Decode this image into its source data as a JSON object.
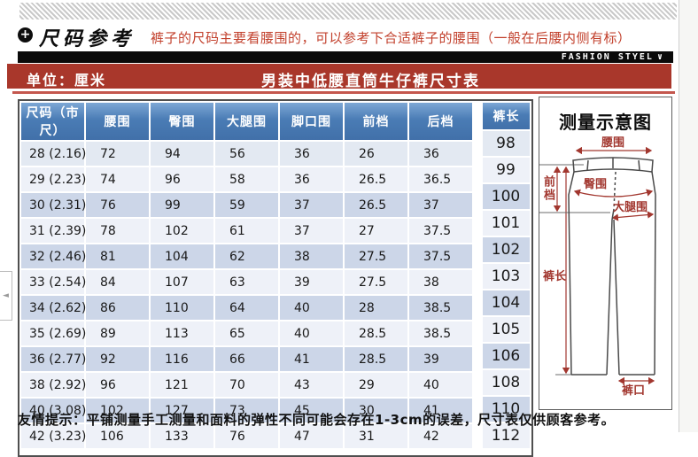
{
  "header": {
    "section_title": "尺码参考",
    "plus_glyph": "+",
    "note": "裤子的尺码主要看腰围的，可以参考下合适裤子的腰围（一般在后腰内侧有标）",
    "brand_tag": "FASHION STYEL",
    "brand_chevron": "∨",
    "unit_label": "单位：厘米",
    "table_title": "男装中低腰直筒牛仔裤尺寸表"
  },
  "table": {
    "columns": [
      "尺码（市尺）",
      "腰围",
      "臀围",
      "大腿围",
      "脚口围",
      "前档",
      "后档",
      "裤长"
    ],
    "rows": [
      [
        "28 (2.16)",
        "72",
        "94",
        "56",
        "36",
        "26",
        "36",
        "98"
      ],
      [
        "29 (2.23)",
        "74",
        "96",
        "58",
        "36",
        "26.5",
        "36.5",
        "99"
      ],
      [
        "30 (2.31)",
        "76",
        "99",
        "59",
        "37",
        "26.5",
        "37",
        "100"
      ],
      [
        "31 (2.39)",
        "78",
        "102",
        "61",
        "37",
        "27",
        "37.5",
        "101"
      ],
      [
        "32 (2.46)",
        "81",
        "104",
        "62",
        "38",
        "27.5",
        "37.5",
        "102"
      ],
      [
        "33 (2.54)",
        "84",
        "107",
        "63",
        "39",
        "27.5",
        "38",
        "103"
      ],
      [
        "34 (2.62)",
        "86",
        "110",
        "64",
        "40",
        "28",
        "38.5",
        "104"
      ],
      [
        "35 (2.69)",
        "89",
        "113",
        "65",
        "40",
        "28.5",
        "38.5",
        "105"
      ],
      [
        "36 (2.77)",
        "92",
        "116",
        "66",
        "41",
        "28.5",
        "39",
        "106"
      ],
      [
        "38 (2.92)",
        "96",
        "121",
        "70",
        "43",
        "29",
        "40",
        "108"
      ],
      [
        "40 (3.08)",
        "102",
        "127",
        "73",
        "45",
        "30",
        "41",
        "110"
      ],
      [
        "42 (3.23)",
        "106",
        "133",
        "76",
        "47",
        "31",
        "42",
        "112"
      ]
    ]
  },
  "diagram": {
    "title": "测量示意图",
    "labels": {
      "waist": "腰围",
      "front_rise": "前档",
      "hip": "臀围",
      "thigh": "大腿围",
      "length": "裤长",
      "hem": "裤口"
    }
  },
  "footer": {
    "note": "友情提示：平铺测量手工测量和面料的弹性不同可能会存在1-3cm的误差，尺寸表仅供顾客参考。"
  },
  "carousel": {
    "prev_glyph": "◄"
  },
  "colors": {
    "title_bar": "#a9372b",
    "table_header": "#4a7cb5",
    "band_light": "#eef1f8",
    "band_medium": "#ccd6e8",
    "note_red": "#c2402c",
    "diagram_label_red": "#a2372f"
  }
}
